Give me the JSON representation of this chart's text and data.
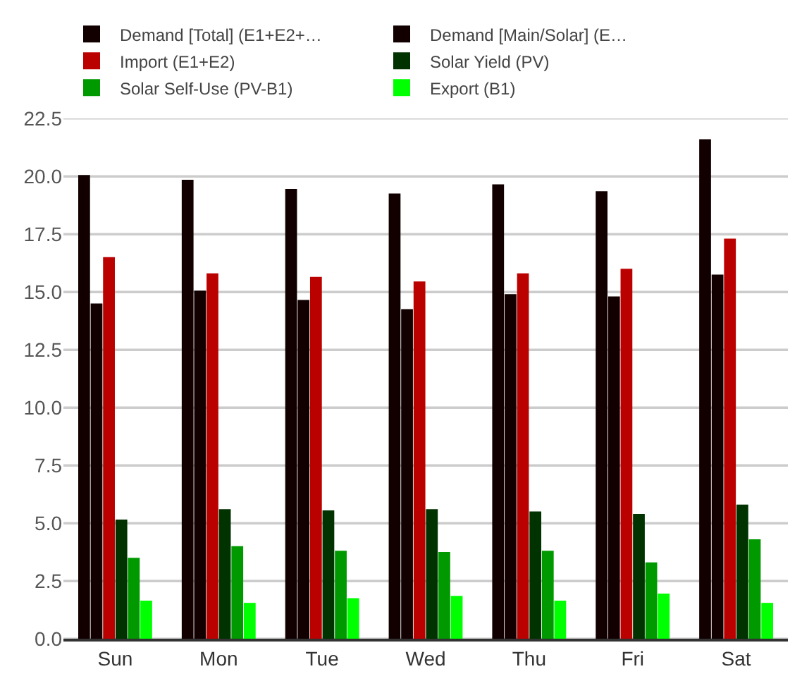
{
  "chart_data": {
    "type": "bar",
    "categories": [
      "Sun",
      "Mon",
      "Tue",
      "Wed",
      "Thu",
      "Fri",
      "Sat"
    ],
    "series": [
      {
        "name": "Demand [Total] (E1+E2+…",
        "color": "#120000",
        "values": [
          20.05,
          19.85,
          19.45,
          19.25,
          19.65,
          19.35,
          21.6
        ]
      },
      {
        "name": "Demand [Main/Solar] (E…",
        "color": "#120000",
        "values": [
          14.5,
          15.05,
          14.65,
          14.25,
          14.9,
          14.8,
          15.75
        ]
      },
      {
        "name": "Import (E1+E2)",
        "color": "#bb0000",
        "values": [
          16.5,
          15.8,
          15.65,
          15.45,
          15.8,
          16.0,
          17.3
        ]
      },
      {
        "name": "Solar Yield (PV)",
        "color": "#003300",
        "values": [
          5.15,
          5.6,
          5.55,
          5.6,
          5.5,
          5.4,
          5.8
        ]
      },
      {
        "name": "Solar Self-Use (PV-B1)",
        "color": "#009900",
        "values": [
          3.5,
          4.0,
          3.8,
          3.75,
          3.8,
          3.3,
          4.3
        ]
      },
      {
        "name": "Export (B1)",
        "color": "#00ff00",
        "values": [
          1.65,
          1.55,
          1.75,
          1.85,
          1.65,
          1.95,
          1.55
        ]
      }
    ],
    "ylim": [
      0,
      22.5
    ],
    "yticks": [
      {
        "value": 0,
        "label": "0.0"
      },
      {
        "value": 2.5,
        "label": "2.5"
      },
      {
        "value": 5,
        "label": "5.0"
      },
      {
        "value": 7.5,
        "label": "7.5"
      },
      {
        "value": 10,
        "label": "10.0"
      },
      {
        "value": 12.5,
        "label": "12.5"
      },
      {
        "value": 15,
        "label": "15.0"
      },
      {
        "value": 17.5,
        "label": "17.5"
      },
      {
        "value": 20,
        "label": "20.0"
      },
      {
        "value": 22.5,
        "label": "22.5"
      }
    ],
    "grid": "y",
    "legend": "top"
  }
}
